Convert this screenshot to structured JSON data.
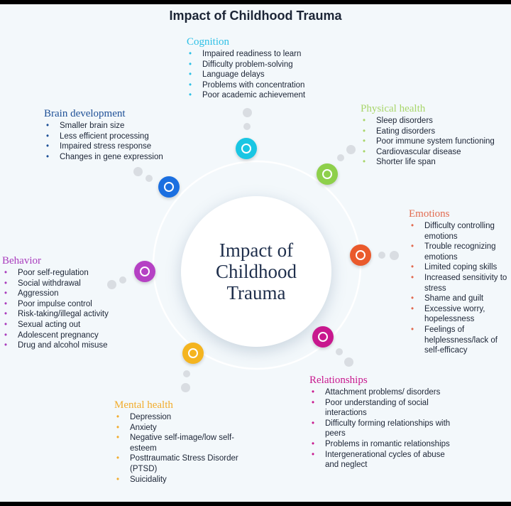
{
  "title": "Impact of Childhood Trauma",
  "center_label": "Impact of Childhood Trauma",
  "sections": {
    "cognition": {
      "title": "Cognition",
      "color": "#2ec0e6",
      "items": [
        "Impaired readiness to learn",
        "Difficulty problem-solving",
        "Language delays",
        "Problems with concentration",
        "Poor academic achievement"
      ]
    },
    "physical_health": {
      "title": "Physical health",
      "color": "#a8d66b",
      "items": [
        "Sleep disorders",
        "Eating disorders",
        "Poor immune system functioning",
        "Cardiovascular disease",
        "Shorter life span"
      ]
    },
    "emotions": {
      "title": "Emotions",
      "color": "#e26a4f",
      "items": [
        "Difficulty controlling emotions",
        "Trouble recognizing emotions",
        "Limited coping skills",
        "Increased sensitivity to stress",
        "Shame and guilt",
        "Excessive worry, hopelessness",
        "Feelings of helplessness/lack of self-efficacy"
      ]
    },
    "relationships": {
      "title": "Relationships",
      "color": "#c8188e",
      "items": [
        "Attachment problems/ disorders",
        "Poor understanding of social interactions",
        "Difficulty forming relationships with peers",
        "Problems in romantic relationships",
        "Intergenerational cycles of abuse and neglect"
      ]
    },
    "mental_health": {
      "title": "Mental health",
      "color": "#f2ac2c",
      "items": [
        "Depression",
        "Anxiety",
        "Negative self-image/low self-esteem",
        "Posttraumatic Stress Disorder (PTSD)",
        "Suicidality"
      ]
    },
    "behavior": {
      "title": "Behavior",
      "color": "#a93bbd",
      "items": [
        "Poor self-regulation",
        "Social withdrawal",
        "Aggression",
        "Poor impulse control",
        "Risk-taking/illegal activity",
        "Sexual acting out",
        "Adolescent pregnancy",
        "Drug and alcohol misuse"
      ]
    },
    "brain_development": {
      "title": "Brain development",
      "color": "#1d4f96",
      "items": [
        "Smaller brain size",
        "Less efficient processing",
        "Impaired stress response",
        "Changes in gene expression"
      ]
    }
  },
  "node_colors": {
    "cognition": "#19c6e3",
    "physical_health": "#8ed04b",
    "emotions": "#ea5a2c",
    "relationships": "#c8188e",
    "mental_health": "#f4b41f",
    "behavior": "#b541c4",
    "brain_development": "#1b6fe0"
  }
}
